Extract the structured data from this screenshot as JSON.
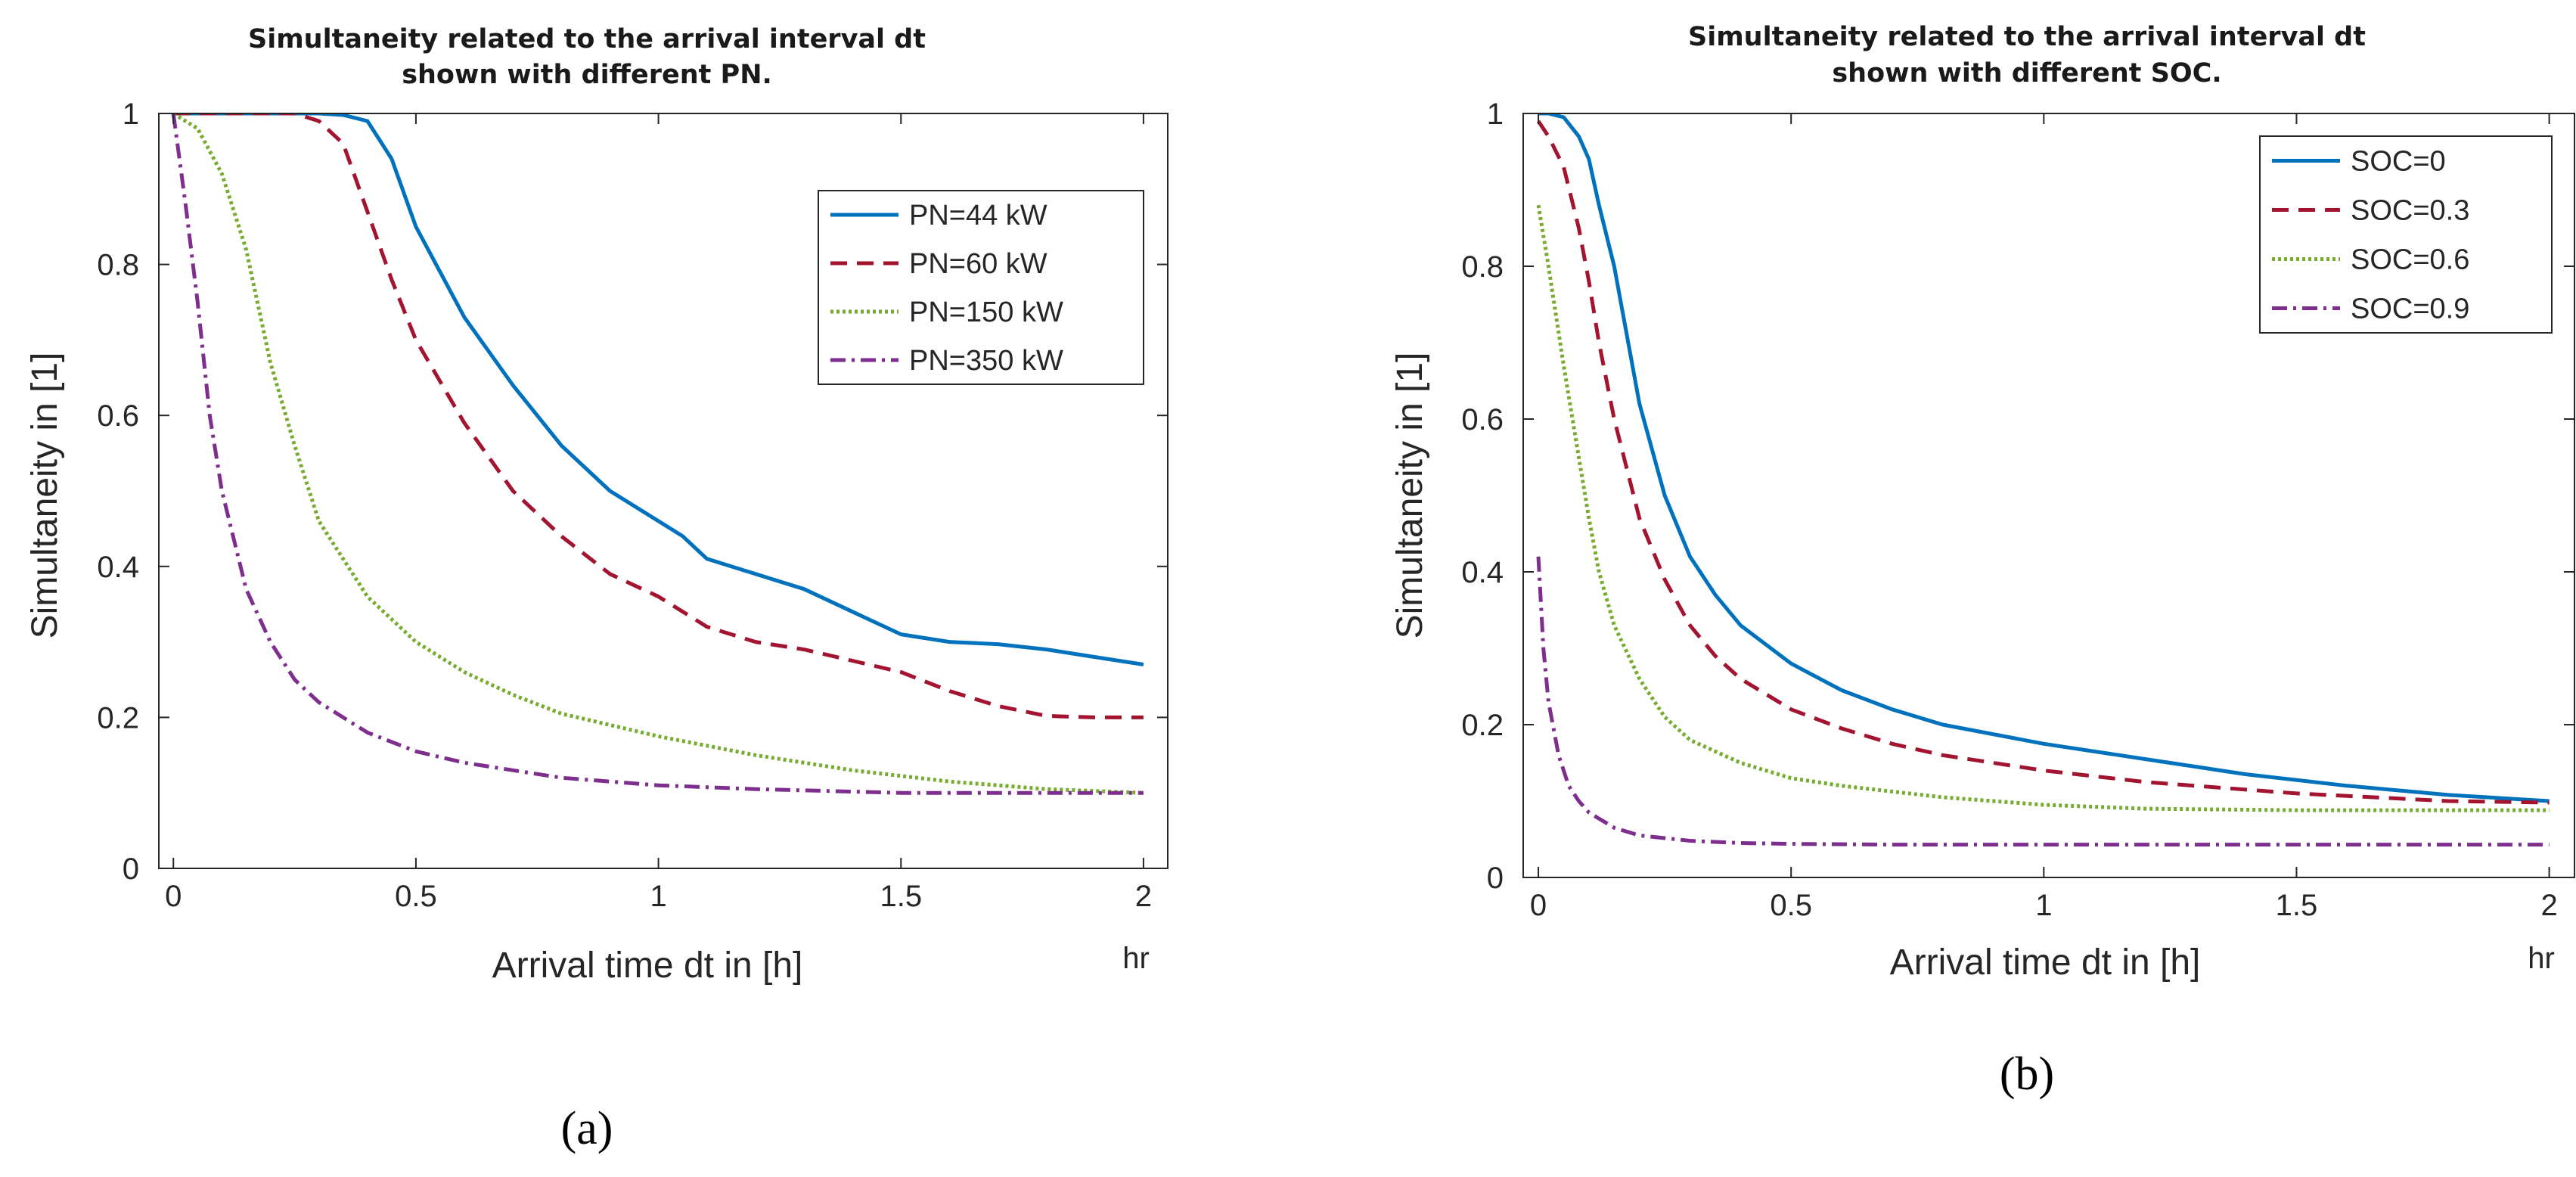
{
  "chart_data": [
    {
      "type": "line",
      "panel_label": "(a)",
      "title_lines": [
        "Simultaneity related to the arrival interval dt",
        "shown with different PN."
      ],
      "xlabel": "Arrival time dt in [h]",
      "ylabel": "Simultaneity in [1]",
      "x_unit": "hr",
      "xlim": [
        -0.03,
        2.05
      ],
      "ylim": [
        0,
        1
      ],
      "xticks": [
        0,
        0.5,
        1,
        1.5,
        2
      ],
      "xtick_labels": [
        "0",
        "0.5",
        "1",
        "1.5",
        "2"
      ],
      "yticks": [
        0,
        0.2,
        0.4,
        0.6,
        0.8,
        1
      ],
      "ytick_labels": [
        "0",
        "0.2",
        "0.4",
        "0.6",
        "0.8",
        "1"
      ],
      "grid": false,
      "legend_position": "top-right",
      "series": [
        {
          "name": "PN=44  kW",
          "color": "#0072BD",
          "dash": "solid",
          "x": [
            0,
            0.1,
            0.2,
            0.3,
            0.35,
            0.4,
            0.45,
            0.5,
            0.6,
            0.7,
            0.8,
            0.9,
            1.0,
            1.05,
            1.1,
            1.2,
            1.3,
            1.4,
            1.5,
            1.6,
            1.7,
            1.8,
            1.9,
            2.0
          ],
          "y": [
            1.0,
            1.0,
            1.0,
            1.0,
            0.998,
            0.99,
            0.94,
            0.85,
            0.73,
            0.64,
            0.56,
            0.5,
            0.46,
            0.44,
            0.41,
            0.39,
            0.37,
            0.34,
            0.31,
            0.3,
            0.297,
            0.29,
            0.28,
            0.27
          ]
        },
        {
          "name": "PN=60  kW",
          "color": "#A2142F",
          "dash": "dashed",
          "x": [
            0,
            0.1,
            0.2,
            0.25,
            0.3,
            0.35,
            0.4,
            0.45,
            0.5,
            0.6,
            0.7,
            0.8,
            0.9,
            1.0,
            1.1,
            1.2,
            1.3,
            1.4,
            1.5,
            1.6,
            1.7,
            1.8,
            1.9,
            2.0
          ],
          "y": [
            1.0,
            1.0,
            1.0,
            1.0,
            0.99,
            0.96,
            0.87,
            0.78,
            0.7,
            0.59,
            0.5,
            0.44,
            0.39,
            0.36,
            0.32,
            0.3,
            0.29,
            0.275,
            0.26,
            0.235,
            0.215,
            0.202,
            0.2,
            0.2
          ]
        },
        {
          "name": "PN=150 kW",
          "color": "#77AC30",
          "dash": "dotted",
          "x": [
            0,
            0.05,
            0.1,
            0.15,
            0.2,
            0.25,
            0.3,
            0.4,
            0.5,
            0.6,
            0.7,
            0.8,
            0.9,
            1.0,
            1.2,
            1.4,
            1.6,
            1.8,
            2.0
          ],
          "y": [
            1.0,
            0.98,
            0.92,
            0.82,
            0.67,
            0.56,
            0.46,
            0.36,
            0.3,
            0.26,
            0.23,
            0.205,
            0.19,
            0.175,
            0.15,
            0.13,
            0.115,
            0.105,
            0.1
          ]
        },
        {
          "name": "PN=350 kW",
          "color": "#7E2F8E",
          "dash": "dashdot",
          "x": [
            0,
            0.025,
            0.05,
            0.075,
            0.1,
            0.15,
            0.2,
            0.25,
            0.3,
            0.35,
            0.4,
            0.5,
            0.6,
            0.7,
            0.8,
            1.0,
            1.2,
            1.5,
            2.0
          ],
          "y": [
            1.0,
            0.88,
            0.75,
            0.6,
            0.5,
            0.37,
            0.3,
            0.25,
            0.22,
            0.2,
            0.18,
            0.155,
            0.14,
            0.13,
            0.12,
            0.11,
            0.105,
            0.1,
            0.1
          ]
        }
      ]
    },
    {
      "type": "line",
      "panel_label": "(b)",
      "title_lines": [
        "Simultaneity related to the arrival interval dt",
        "shown with different SOC."
      ],
      "xlabel": "Arrival time dt in [h]",
      "ylabel": "Simultaneity in [1]",
      "x_unit": "hr",
      "xlim": [
        -0.03,
        2.05
      ],
      "ylim": [
        0,
        1
      ],
      "xticks": [
        0,
        0.5,
        1,
        1.5,
        2
      ],
      "xtick_labels": [
        "0",
        "0.5",
        "1",
        "1.5",
        "2"
      ],
      "yticks": [
        0,
        0.2,
        0.4,
        0.6,
        0.8,
        1
      ],
      "ytick_labels": [
        "0",
        "0.2",
        "0.4",
        "0.6",
        "0.8",
        "1"
      ],
      "grid": false,
      "legend_position": "top-right",
      "series": [
        {
          "name": "SOC=0",
          "color": "#0072BD",
          "dash": "solid",
          "x": [
            0,
            0.02,
            0.05,
            0.08,
            0.1,
            0.12,
            0.15,
            0.2,
            0.25,
            0.3,
            0.35,
            0.4,
            0.5,
            0.6,
            0.7,
            0.8,
            1.0,
            1.2,
            1.4,
            1.6,
            1.8,
            2.0
          ],
          "y": [
            1.0,
            1.0,
            0.995,
            0.97,
            0.94,
            0.88,
            0.8,
            0.62,
            0.5,
            0.42,
            0.37,
            0.33,
            0.28,
            0.245,
            0.22,
            0.2,
            0.175,
            0.155,
            0.135,
            0.12,
            0.108,
            0.1
          ]
        },
        {
          "name": "SOC=0.3",
          "color": "#A2142F",
          "dash": "dashed",
          "x": [
            0,
            0.02,
            0.05,
            0.08,
            0.1,
            0.12,
            0.15,
            0.2,
            0.25,
            0.3,
            0.35,
            0.4,
            0.5,
            0.6,
            0.7,
            0.8,
            1.0,
            1.2,
            1.5,
            1.8,
            2.0
          ],
          "y": [
            0.99,
            0.97,
            0.93,
            0.85,
            0.78,
            0.7,
            0.6,
            0.47,
            0.39,
            0.33,
            0.29,
            0.26,
            0.22,
            0.195,
            0.175,
            0.16,
            0.14,
            0.125,
            0.11,
            0.1,
            0.098
          ]
        },
        {
          "name": "SOC=0.6",
          "color": "#77AC30",
          "dash": "dotted",
          "x": [
            0,
            0.02,
            0.05,
            0.08,
            0.1,
            0.12,
            0.15,
            0.2,
            0.25,
            0.3,
            0.4,
            0.5,
            0.6,
            0.8,
            1.0,
            1.2,
            1.5,
            2.0
          ],
          "y": [
            0.88,
            0.8,
            0.67,
            0.55,
            0.47,
            0.4,
            0.33,
            0.26,
            0.21,
            0.18,
            0.15,
            0.13,
            0.12,
            0.105,
            0.095,
            0.09,
            0.088,
            0.088
          ]
        },
        {
          "name": "SOC=0.9",
          "color": "#7E2F8E",
          "dash": "dashdot",
          "x": [
            0,
            0.01,
            0.02,
            0.04,
            0.06,
            0.08,
            0.1,
            0.15,
            0.2,
            0.3,
            0.4,
            0.5,
            0.7,
            1.0,
            1.5,
            2.0
          ],
          "y": [
            0.42,
            0.3,
            0.23,
            0.16,
            0.12,
            0.1,
            0.085,
            0.065,
            0.055,
            0.048,
            0.045,
            0.044,
            0.043,
            0.043,
            0.043,
            0.043
          ]
        }
      ]
    }
  ]
}
